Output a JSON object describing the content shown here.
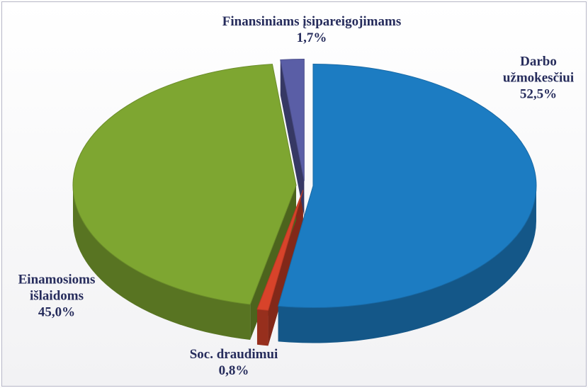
{
  "chart_data": {
    "type": "pie",
    "categories": [
      "Darbo užmokesčiui",
      "Soc. draudimui",
      "Einamosioms išlaidoms",
      "Finansiniams įsipareigojimams"
    ],
    "values": [
      52.5,
      0.8,
      45.0,
      1.7
    ],
    "value_labels": [
      "52,5%",
      "0,8%",
      "45,0%",
      "1,7%"
    ],
    "colors": [
      "#1c7cc2",
      "#d8432a",
      "#7ea631",
      "#5a5ea6"
    ]
  }
}
